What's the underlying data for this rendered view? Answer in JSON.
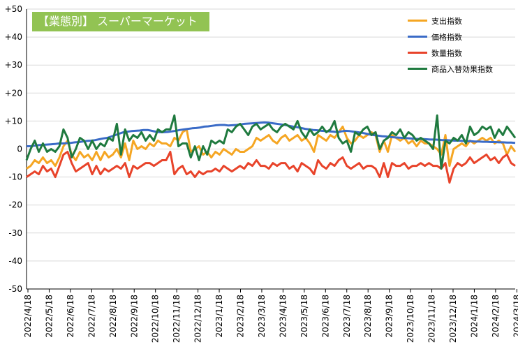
{
  "chart_data": {
    "type": "line",
    "title": "【業態別】 スーパーマーケット",
    "ylim": [
      -50,
      50
    ],
    "yticks": [
      "+50",
      "+40",
      "+30",
      "+20",
      "+10",
      "0",
      "-10",
      "-20",
      "-30",
      "-40",
      "-50"
    ],
    "ytick_values": [
      50,
      40,
      30,
      20,
      10,
      0,
      -10,
      -20,
      -30,
      -40,
      -50
    ],
    "x_tick_labels": [
      "2022/4/18",
      "2022/5/18",
      "2022/6/18",
      "2022/7/18",
      "2022/8/18",
      "2022/9/18",
      "2022/10/18",
      "2022/11/18",
      "2022/12/18",
      "2023/1/18",
      "2023/2/18",
      "2023/3/18",
      "2023/4/18",
      "2023/5/18",
      "2023/6/18",
      "2023/7/18",
      "2023/8/18",
      "2023/9/18",
      "2023/10/18",
      "2023/11/18",
      "2023/12/18",
      "2024/1/18",
      "2024/2/18",
      "2024/3/18"
    ],
    "grid": true,
    "legend_position": "top-right",
    "series": [
      {
        "name": "支出指数",
        "color": "#f5a623",
        "values": [
          -7,
          -6,
          -4,
          -5,
          -3,
          -5,
          -4,
          -6,
          -3,
          1,
          3,
          -2,
          -4,
          -1,
          -3,
          -2,
          -4,
          -1,
          -4,
          -1,
          -3,
          -2,
          0,
          -3,
          2,
          -4,
          3,
          0,
          1,
          0,
          2,
          1,
          3,
          2,
          2,
          1,
          4,
          3,
          6,
          7,
          -1,
          0,
          1,
          -2,
          -1,
          -3,
          -1,
          -2,
          0,
          -1,
          -2,
          0,
          -1,
          -1,
          0,
          1,
          4,
          3,
          4,
          5,
          3,
          2,
          4,
          5,
          3,
          4,
          5,
          3,
          4,
          2,
          -1,
          5,
          4,
          3,
          5,
          4,
          6,
          8,
          4,
          2,
          3,
          5,
          4,
          5,
          6,
          5,
          -1,
          3,
          -1,
          5,
          4,
          3,
          4,
          2,
          3,
          1,
          3,
          2,
          2,
          1,
          0,
          -2,
          5,
          -6,
          0,
          1,
          2,
          1,
          3,
          2,
          3,
          4,
          3,
          4,
          2,
          3,
          2,
          -2,
          1,
          -1
        ]
      },
      {
        "name": "価格指数",
        "color": "#3a6bc7",
        "values": [
          1,
          1,
          1.2,
          1.4,
          1.5,
          1.6,
          1.7,
          1.8,
          2,
          2,
          2.1,
          2.2,
          2.4,
          2.5,
          2.7,
          2.9,
          3,
          3.2,
          3.5,
          3.8,
          4,
          4.5,
          5,
          5.5,
          6,
          6.2,
          6.4,
          6.5,
          6.6,
          6.8,
          6.8,
          6.5,
          6.2,
          6,
          6,
          6.1,
          6.3,
          6.5,
          6.8,
          7,
          7.2,
          7.4,
          7.5,
          7.7,
          8,
          8.1,
          8.3,
          8.5,
          8.6,
          8.6,
          8.4,
          8.5,
          8.6,
          8.8,
          9,
          9.1,
          9.2,
          9.3,
          9.4,
          9.5,
          9.4,
          9.2,
          9,
          8.8,
          8.6,
          8.3,
          8,
          7.8,
          7.5,
          7.2,
          7,
          6.8,
          6.7,
          6.5,
          6.4,
          6.3,
          6.2,
          6,
          6.3,
          6.5,
          6.4,
          6.2,
          6,
          5.8,
          5.5,
          5.2,
          5,
          4.8,
          4.6,
          4.5,
          4.3,
          4.2,
          4.1,
          4,
          3.9,
          3.8,
          3.7,
          3.6,
          3.6,
          3.5,
          3.4,
          3.4,
          3.3,
          3.2,
          3.2,
          3.1,
          3,
          3,
          2.9,
          2.8,
          2.8,
          2.7,
          2.7,
          2.6,
          2.6,
          2.5,
          2.5,
          2.4,
          2.4,
          2.3,
          2.3,
          2.2
        ]
      },
      {
        "name": "数量指数",
        "color": "#e8432a",
        "values": [
          -10,
          -9,
          -8,
          -9,
          -6,
          -8,
          -7,
          -10,
          -6,
          -2,
          -1,
          -5,
          -8,
          -7,
          -6,
          -5,
          -9,
          -6,
          -9,
          -7,
          -8,
          -7,
          -6,
          -7,
          -5,
          -10,
          -6,
          -7,
          -6,
          -5,
          -5,
          -6,
          -5,
          -4,
          -4,
          -1,
          -9,
          -7,
          -6,
          -9,
          -8,
          -10,
          -8,
          -9,
          -8,
          -8,
          -7,
          -8,
          -6,
          -7,
          -8,
          -7,
          -6,
          -7,
          -5,
          -6,
          -4,
          -6,
          -6,
          -7,
          -5,
          -6,
          -5,
          -5,
          -7,
          -6,
          -8,
          -5,
          -6,
          -7,
          -9,
          -4,
          -6,
          -7,
          -5,
          -6,
          -4,
          -3,
          -6,
          -7,
          -6,
          -5,
          -7,
          -6,
          -6,
          -7,
          -10,
          -5,
          -10,
          -5,
          -6,
          -6,
          -5,
          -7,
          -6,
          -6,
          -5,
          -6,
          -5,
          -6,
          -6,
          -7,
          -5,
          -12,
          -7,
          -5,
          -6,
          -5,
          -3,
          -5,
          -4,
          -3,
          -2,
          -4,
          -3,
          -5,
          -3,
          -2,
          -5,
          -6
        ]
      },
      {
        "name": "商品入替効果指数",
        "color": "#1f7a3f",
        "values": [
          -4,
          0,
          3,
          -1,
          2,
          -1,
          0,
          -1,
          1,
          7,
          4,
          -3,
          0,
          4,
          3,
          0,
          3,
          0,
          2,
          1,
          4,
          3,
          9,
          -2,
          7,
          3,
          5,
          4,
          6,
          3,
          5,
          3,
          7,
          6,
          7,
          7,
          12,
          1,
          2,
          2,
          -3,
          1,
          -4,
          1,
          -2,
          3,
          2,
          3,
          2,
          7,
          6,
          8,
          9,
          7,
          5,
          8,
          9,
          7,
          8,
          9,
          7,
          6,
          8,
          9,
          8,
          7,
          10,
          6,
          4,
          7,
          5,
          6,
          8,
          6,
          7,
          10,
          4,
          2,
          3,
          -1,
          6,
          5,
          7,
          8,
          5,
          6,
          0,
          3,
          4,
          6,
          5,
          7,
          4,
          6,
          5,
          3,
          4,
          3,
          2,
          0,
          12,
          -7,
          3,
          2,
          4,
          3,
          5,
          2,
          8,
          5,
          6,
          8,
          7,
          8,
          4,
          7,
          5,
          8,
          6,
          4
        ]
      }
    ]
  }
}
